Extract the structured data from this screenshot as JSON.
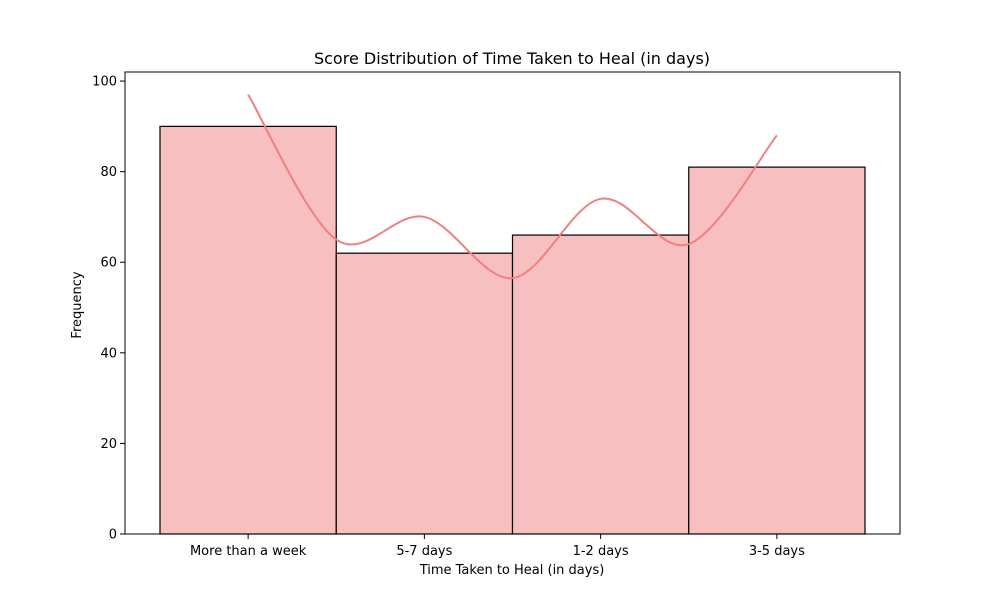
{
  "chart_data": {
    "type": "bar",
    "title": "Score Distribution of Time Taken to Heal (in days)",
    "xlabel": "Time Taken to Heal (in days)",
    "ylabel": "Frequency",
    "categories": [
      "More than a week",
      "5-7 days",
      "1-2 days",
      "3-5 days"
    ],
    "values": [
      90,
      62,
      66,
      81
    ],
    "ylim": [
      0,
      102
    ],
    "yticks": [
      0,
      20,
      40,
      60,
      80,
      100
    ],
    "kde_curve": {
      "x": [
        0,
        0.5,
        1,
        1.5,
        2,
        2.5,
        3
      ],
      "y": [
        97,
        65,
        70,
        56.5,
        74,
        64,
        88
      ]
    },
    "grid": false,
    "legend": "none",
    "colors": {
      "bar_fill": "#f7bfbf",
      "bar_edge": "#000000",
      "kde_line": "#f08080"
    }
  }
}
